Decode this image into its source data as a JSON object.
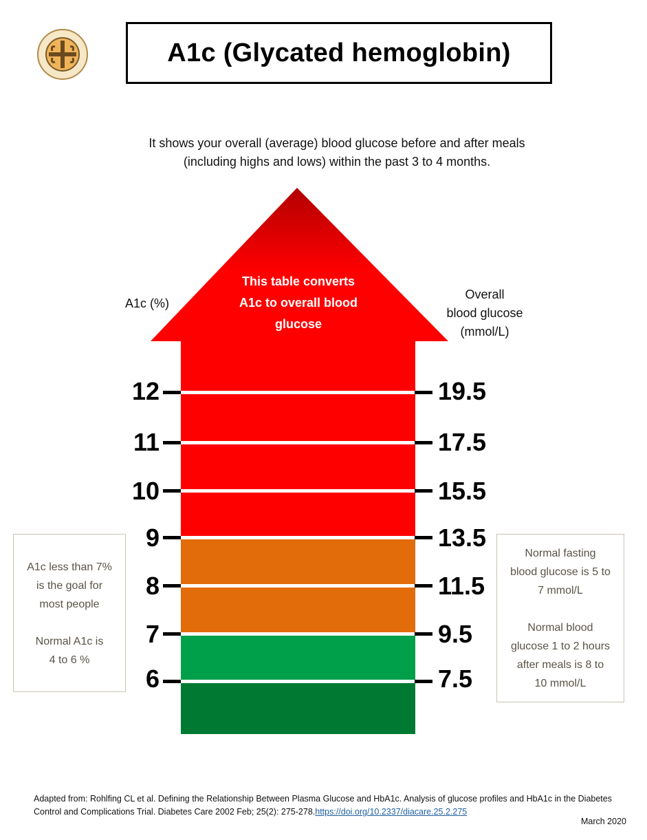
{
  "header": {
    "logo_icon": "circular-cross-emblem-icon",
    "title": "A1c (Glycated hemoglobin)"
  },
  "intro": {
    "line1": "It shows your overall (average) blood glucose before and after meals",
    "line2": "(including highs and lows) within the past 3 to 4 months."
  },
  "diagram": {
    "arrow_text": [
      "This table converts",
      "A1c to overall blood",
      "glucose"
    ],
    "left_axis_title": "A1c (%)",
    "right_axis_title": [
      "Overall",
      "blood glucose",
      "(mmol/L)"
    ],
    "rows": [
      {
        "a1c": "12",
        "glucose": "19.5"
      },
      {
        "a1c": "11",
        "glucose": "17.5"
      },
      {
        "a1c": "10",
        "glucose": "15.5"
      },
      {
        "a1c": "9",
        "glucose": "13.5"
      },
      {
        "a1c": "8",
        "glucose": "11.5"
      },
      {
        "a1c": "7",
        "glucose": "9.5"
      },
      {
        "a1c": "6",
        "glucose": "7.5"
      }
    ],
    "colors": {
      "arrow_top": "#b20000",
      "red": "#ff0000",
      "orange": "#e26b0a",
      "green": "#00a04a",
      "dark_green": "#007a33"
    }
  },
  "notes": {
    "left": [
      "A1c less than 7%",
      "is the goal for",
      "most people",
      "",
      "Normal A1c is",
      "4 to 6 %"
    ],
    "right": [
      "Normal fasting",
      "blood glucose is 5 to",
      "7 mmol/L",
      "",
      "Normal blood",
      "glucose 1 to 2 hours",
      "after meals is 8 to",
      "10 mmol/L"
    ]
  },
  "footer": {
    "citation_text": "Adapted from: Rohlfing CL et al. Defining the Relationship Between Plasma Glucose and HbA1c. Analysis of glucose profiles and HbA1c in the Diabetes Control and Complications Trial. Diabetes Care 2002 Feb; 25(2): 275-278.",
    "citation_link": "https://doi.org/10.2337/diacare.25.2.275",
    "date": "March 2020"
  }
}
